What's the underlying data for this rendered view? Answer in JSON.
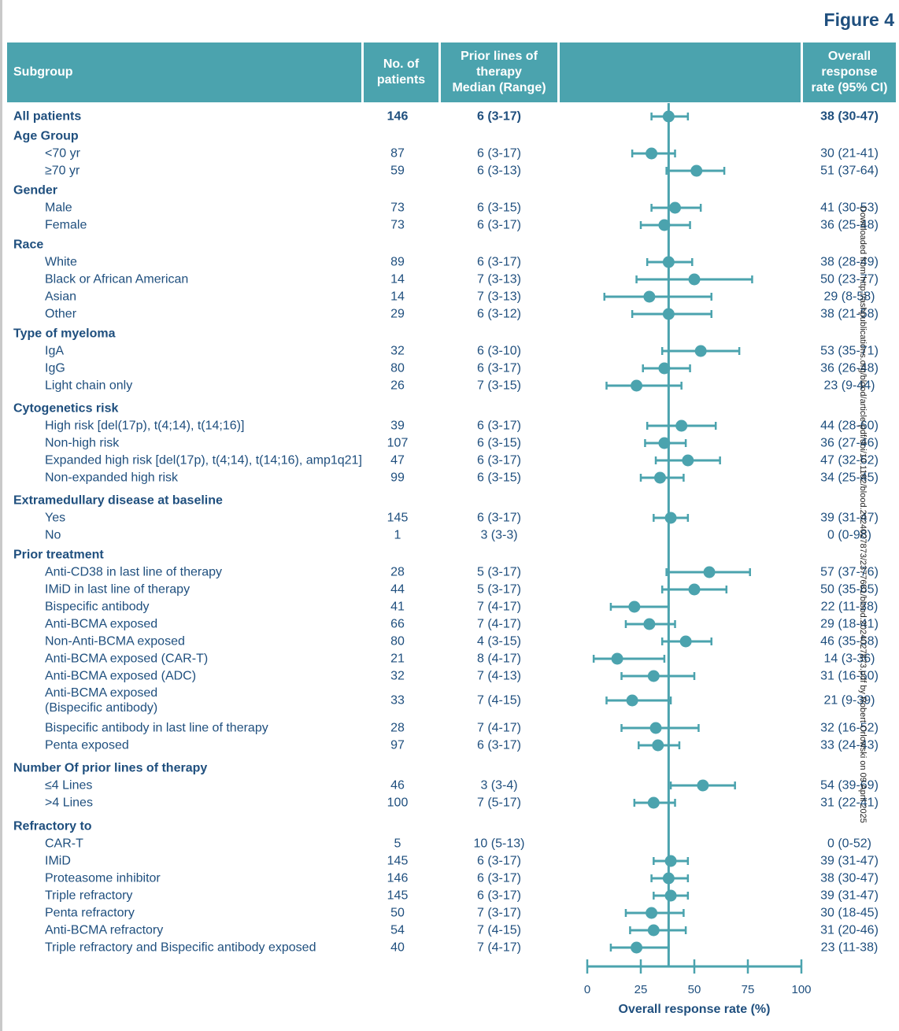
{
  "figure_label": "Figure 4",
  "headers": {
    "subgroup": "Subgroup",
    "patients": "No. of\npatients",
    "prior_lines": "Prior lines of\ntherapy\nMedian (Range)",
    "plot": "",
    "orr": "Overall\nresponse\nrate (95% CI)"
  },
  "watermark": "Downloaded from http://ashpublications.org/blood/article-pdf/doi/10.1182/blood.2024027873/2377681/blood.2024027873.pdf by Robert Orlowski on 09 April 2025",
  "colors": {
    "accent": "#4ba3ae",
    "text": "#1f4f7e",
    "header_text": "#ffffff"
  },
  "chart_data": {
    "type": "forest",
    "xlabel": "Overall response rate (%)",
    "xlim": [
      0,
      100
    ],
    "xticks": [
      0,
      25,
      50,
      75,
      100
    ],
    "reference_line": 38,
    "rows": [
      {
        "label": "All patients",
        "kind": "data",
        "bold": true,
        "indent": false,
        "n": "146",
        "prior": "6 (3-17)",
        "orr_text": "38 (30-47)",
        "est": 38,
        "lo": 30,
        "hi": 47
      },
      {
        "label": "Age Group",
        "kind": "header"
      },
      {
        "label": "<70 yr",
        "kind": "data",
        "indent": true,
        "n": "87",
        "prior": "6 (3-17)",
        "orr_text": "30 (21-41)",
        "est": 30,
        "lo": 21,
        "hi": 41
      },
      {
        "label": "≥70 yr",
        "kind": "data",
        "indent": true,
        "n": "59",
        "prior": "6 (3-13)",
        "orr_text": "51 (37-64)",
        "est": 51,
        "lo": 37,
        "hi": 64
      },
      {
        "label": "Gender",
        "kind": "header"
      },
      {
        "label": "Male",
        "kind": "data",
        "indent": true,
        "n": "73",
        "prior": "6 (3-15)",
        "orr_text": "41 (30-53)",
        "est": 41,
        "lo": 30,
        "hi": 53
      },
      {
        "label": "Female",
        "kind": "data",
        "indent": true,
        "n": "73",
        "prior": "6 (3-17)",
        "orr_text": "36 (25-48)",
        "est": 36,
        "lo": 25,
        "hi": 48
      },
      {
        "label": "Race",
        "kind": "header"
      },
      {
        "label": "White",
        "kind": "data",
        "indent": true,
        "n": "89",
        "prior": "6 (3-17)",
        "orr_text": "38 (28-49)",
        "est": 38,
        "lo": 28,
        "hi": 49
      },
      {
        "label": "Black or African American",
        "kind": "data",
        "indent": true,
        "n": "14",
        "prior": "7 (3-13)",
        "orr_text": "50 (23-77)",
        "est": 50,
        "lo": 23,
        "hi": 77
      },
      {
        "label": "Asian",
        "kind": "data",
        "indent": true,
        "n": "14",
        "prior": "7 (3-13)",
        "orr_text": "29 (8-58)",
        "est": 29,
        "lo": 8,
        "hi": 58
      },
      {
        "label": "Other",
        "kind": "data",
        "indent": true,
        "n": "29",
        "prior": "6 (3-12)",
        "orr_text": "38 (21-58)",
        "est": 38,
        "lo": 21,
        "hi": 58
      },
      {
        "label": "Type of myeloma",
        "kind": "header"
      },
      {
        "label": "IgA",
        "kind": "data",
        "indent": true,
        "n": "32",
        "prior": "6 (3-10)",
        "orr_text": "53 (35-71)",
        "est": 53,
        "lo": 35,
        "hi": 71
      },
      {
        "label": "IgG",
        "kind": "data",
        "indent": true,
        "n": "80",
        "prior": "6 (3-17)",
        "orr_text": "36 (26-48)",
        "est": 36,
        "lo": 26,
        "hi": 48
      },
      {
        "label": "Light chain only",
        "kind": "data",
        "indent": true,
        "n": "26",
        "prior": "7 (3-15)",
        "orr_text": "23 (9-44)",
        "est": 23,
        "lo": 9,
        "hi": 44
      },
      {
        "label": "Cytogenetics risk",
        "kind": "header"
      },
      {
        "label": "High risk [del(17p), t(4;14), t(14;16)]",
        "kind": "data",
        "indent": true,
        "n": "39",
        "prior": "6 (3-17)",
        "orr_text": "44 (28-60)",
        "est": 44,
        "lo": 28,
        "hi": 60
      },
      {
        "label": "Non-high risk",
        "kind": "data",
        "indent": true,
        "n": "107",
        "prior": "6 (3-15)",
        "orr_text": "36 (27-46)",
        "est": 36,
        "lo": 27,
        "hi": 46
      },
      {
        "label": "Expanded high risk [del(17p), t(4;14), t(14;16), amp1q21]",
        "kind": "data",
        "indent": true,
        "n": "47",
        "prior": "6 (3-17)",
        "orr_text": "47 (32-62)",
        "est": 47,
        "lo": 32,
        "hi": 62
      },
      {
        "label": "Non-expanded high risk",
        "kind": "data",
        "indent": true,
        "n": "99",
        "prior": "6 (3-15)",
        "orr_text": "34 (25-45)",
        "est": 34,
        "lo": 25,
        "hi": 45
      },
      {
        "label": "Extramedullary disease at baseline",
        "kind": "header"
      },
      {
        "label": "Yes",
        "kind": "data",
        "indent": true,
        "n": "145",
        "prior": "6 (3-17)",
        "orr_text": "39 (31-47)",
        "est": 39,
        "lo": 31,
        "hi": 47
      },
      {
        "label": "No",
        "kind": "data",
        "indent": true,
        "n": "1",
        "prior": "3 (3-3)",
        "orr_text": "0 (0-98)",
        "est": null,
        "lo": null,
        "hi": null
      },
      {
        "label": "Prior treatment",
        "kind": "header"
      },
      {
        "label": "Anti-CD38 in last line of therapy",
        "kind": "data",
        "indent": true,
        "n": "28",
        "prior": "5 (3-17)",
        "orr_text": "57 (37-76)",
        "est": 57,
        "lo": 37,
        "hi": 76
      },
      {
        "label": "IMiD in last line of therapy",
        "kind": "data",
        "indent": true,
        "n": "44",
        "prior": "5 (3-17)",
        "orr_text": "50 (35-65)",
        "est": 50,
        "lo": 35,
        "hi": 65
      },
      {
        "label": "Bispecific antibody",
        "kind": "data",
        "indent": true,
        "n": "41",
        "prior": "7 (4-17)",
        "orr_text": "22 (11-38)",
        "est": 22,
        "lo": 11,
        "hi": 38
      },
      {
        "label": "Anti-BCMA exposed",
        "kind": "data",
        "indent": true,
        "n": "66",
        "prior": "7 (4-17)",
        "orr_text": "29 (18-41)",
        "est": 29,
        "lo": 18,
        "hi": 41
      },
      {
        "label": "Non-Anti-BCMA exposed",
        "kind": "data",
        "indent": true,
        "n": "80",
        "prior": "4 (3-15)",
        "orr_text": "46 (35-58)",
        "est": 46,
        "lo": 35,
        "hi": 58
      },
      {
        "label": "Anti-BCMA exposed (CAR-T)",
        "kind": "data",
        "indent": true,
        "n": "21",
        "prior": "8 (4-17)",
        "orr_text": "14 (3-36)",
        "est": 14,
        "lo": 3,
        "hi": 36
      },
      {
        "label": "Anti-BCMA exposed (ADC)",
        "kind": "data",
        "indent": true,
        "n": "32",
        "prior": "7 (4-13)",
        "orr_text": "31 (16-50)",
        "est": 31,
        "lo": 16,
        "hi": 50
      },
      {
        "label": "Anti-BCMA exposed\n(Bispecific antibody)",
        "kind": "data",
        "indent": true,
        "tall": true,
        "n": "33",
        "prior": "7 (4-15)",
        "orr_text": "21 (9-39)",
        "est": 21,
        "lo": 9,
        "hi": 39
      },
      {
        "label": "Bispecific antibody in last line of therapy",
        "kind": "data",
        "indent": true,
        "n": "28",
        "prior": "7 (4-17)",
        "orr_text": "32 (16-52)",
        "est": 32,
        "lo": 16,
        "hi": 52
      },
      {
        "label": "Penta exposed",
        "kind": "data",
        "indent": true,
        "n": "97",
        "prior": "6 (3-17)",
        "orr_text": "33 (24-43)",
        "est": 33,
        "lo": 24,
        "hi": 43
      },
      {
        "label": "Number Of prior lines of therapy",
        "kind": "header"
      },
      {
        "label": "≤4 Lines",
        "kind": "data",
        "indent": true,
        "n": "46",
        "prior": "3 (3-4)",
        "orr_text": "54 (39-69)",
        "est": 54,
        "lo": 39,
        "hi": 69
      },
      {
        "label": ">4 Lines",
        "kind": "data",
        "indent": true,
        "n": "100",
        "prior": "7 (5-17)",
        "orr_text": "31 (22-41)",
        "est": 31,
        "lo": 22,
        "hi": 41
      },
      {
        "label": "Refractory to",
        "kind": "header"
      },
      {
        "label": "CAR-T",
        "kind": "data",
        "indent": true,
        "n": "5",
        "prior": "10 (5-13)",
        "orr_text": "0 (0-52)",
        "est": null,
        "lo": null,
        "hi": null
      },
      {
        "label": "IMiD",
        "kind": "data",
        "indent": true,
        "n": "145",
        "prior": "6 (3-17)",
        "orr_text": "39 (31-47)",
        "est": 39,
        "lo": 31,
        "hi": 47
      },
      {
        "label": "Proteasome inhibitor",
        "kind": "data",
        "indent": true,
        "n": "146",
        "prior": "6 (3-17)",
        "orr_text": "38 (30-47)",
        "est": 38,
        "lo": 30,
        "hi": 47
      },
      {
        "label": "Triple refractory",
        "kind": "data",
        "indent": true,
        "n": "145",
        "prior": "6 (3-17)",
        "orr_text": "39 (31-47)",
        "est": 39,
        "lo": 31,
        "hi": 47
      },
      {
        "label": "Penta refractory",
        "kind": "data",
        "indent": true,
        "n": "50",
        "prior": "7 (3-17)",
        "orr_text": "30 (18-45)",
        "est": 30,
        "lo": 18,
        "hi": 45
      },
      {
        "label": "Anti-BCMA refractory",
        "kind": "data",
        "indent": true,
        "n": "54",
        "prior": "7 (4-15)",
        "orr_text": "31 (20-46)",
        "est": 31,
        "lo": 20,
        "hi": 46
      },
      {
        "label": "Triple refractory and Bispecific antibody exposed",
        "kind": "data",
        "indent": true,
        "n": "40",
        "prior": "7 (4-17)",
        "orr_text": "23 (11-38)",
        "est": 23,
        "lo": 11,
        "hi": 38
      }
    ]
  }
}
